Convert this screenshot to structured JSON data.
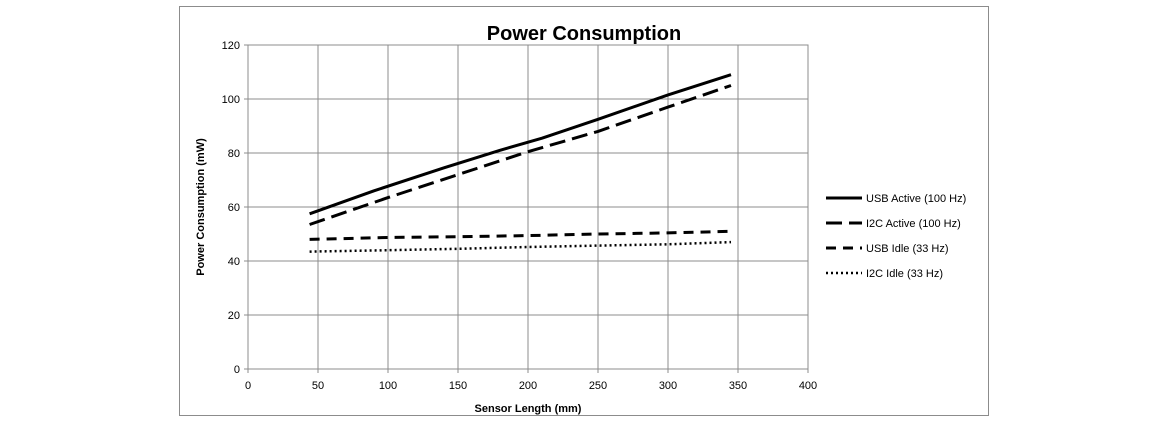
{
  "chart_data": {
    "type": "line",
    "title": "Power Consumption",
    "xlabel": "Sensor Length (mm)",
    "ylabel": "Power Consumption (mW)",
    "xlim": [
      0,
      400
    ],
    "ylim": [
      0,
      120
    ],
    "x_ticks": [
      0,
      50,
      100,
      150,
      200,
      250,
      300,
      350,
      400
    ],
    "y_ticks": [
      0,
      20,
      40,
      60,
      80,
      100,
      120
    ],
    "grid": true,
    "legend_position": "right",
    "series": [
      {
        "name": "USB Active (100 Hz)",
        "style": "solid",
        "x": [
          44,
          90,
          140,
          180,
          210,
          250,
          300,
          345
        ],
        "y": [
          57.5,
          66,
          74.5,
          81,
          85.5,
          92.5,
          101.5,
          109
        ]
      },
      {
        "name": "I2C Active (100 Hz)",
        "style": "longdash",
        "x": [
          44,
          100,
          150,
          200,
          250,
          300,
          345
        ],
        "y": [
          53.5,
          63.5,
          72,
          80.5,
          88,
          97,
          105
        ]
      },
      {
        "name": "USB Idle (33 Hz)",
        "style": "dash",
        "x": [
          44,
          100,
          150,
          200,
          250,
          300,
          345
        ],
        "y": [
          48,
          48.7,
          49,
          49.4,
          50,
          50.4,
          51
        ]
      },
      {
        "name": "I2C Idle (33 Hz)",
        "style": "dot",
        "x": [
          44,
          100,
          150,
          200,
          250,
          300,
          345
        ],
        "y": [
          43.5,
          44,
          44.5,
          45.2,
          45.7,
          46.2,
          47
        ]
      }
    ],
    "line_color": "#000000",
    "grid_color": "#8c8c8c"
  }
}
